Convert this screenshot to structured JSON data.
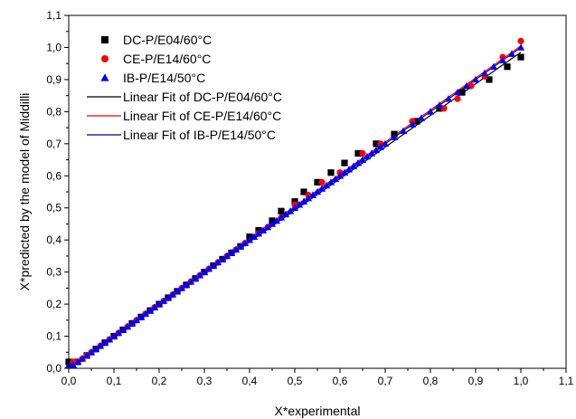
{
  "chart_data": {
    "type": "scatter",
    "title": "",
    "xlabel": "X*experimental",
    "ylabel": "X*predicted by the model of Middilli",
    "xlim": [
      0.0,
      1.1
    ],
    "ylim": [
      0.0,
      1.1
    ],
    "xticks": [
      "0,0",
      "0,1",
      "0,2",
      "0,3",
      "0,4",
      "0,5",
      "0,6",
      "0,7",
      "0,8",
      "0,9",
      "1,0",
      "1,1"
    ],
    "yticks": [
      "0,0",
      "0,1",
      "0,2",
      "0,3",
      "0,4",
      "0,5",
      "0,6",
      "0,7",
      "0,8",
      "0,9",
      "1,0",
      "1,1"
    ],
    "grid": false,
    "legend_position": "top-left",
    "series": [
      {
        "name": "DC-P/E04/60°C",
        "marker": "square",
        "color": "#000000",
        "x": [
          0.0,
          0.02,
          0.04,
          0.06,
          0.08,
          0.1,
          0.12,
          0.14,
          0.16,
          0.18,
          0.2,
          0.22,
          0.24,
          0.26,
          0.28,
          0.3,
          0.32,
          0.34,
          0.36,
          0.38,
          0.4,
          0.42,
          0.45,
          0.47,
          0.5,
          0.52,
          0.55,
          0.58,
          0.61,
          0.64,
          0.68,
          0.72,
          0.77,
          0.82,
          0.87,
          0.93,
          0.97,
          1.0
        ],
        "y": [
          0.02,
          0.02,
          0.04,
          0.06,
          0.08,
          0.1,
          0.12,
          0.14,
          0.16,
          0.18,
          0.2,
          0.22,
          0.24,
          0.26,
          0.28,
          0.3,
          0.32,
          0.34,
          0.36,
          0.38,
          0.41,
          0.43,
          0.46,
          0.49,
          0.52,
          0.55,
          0.58,
          0.61,
          0.64,
          0.67,
          0.7,
          0.73,
          0.77,
          0.81,
          0.86,
          0.9,
          0.94,
          0.97
        ]
      },
      {
        "name": "CE-P/E14/60°C",
        "marker": "circle",
        "color": "#ff0000",
        "x": [
          0.01,
          0.02,
          0.03,
          0.04,
          0.05,
          0.07,
          0.09,
          0.11,
          0.13,
          0.15,
          0.17,
          0.19,
          0.21,
          0.23,
          0.25,
          0.27,
          0.29,
          0.31,
          0.33,
          0.35,
          0.37,
          0.39,
          0.42,
          0.44,
          0.47,
          0.5,
          0.53,
          0.56,
          0.6,
          0.65,
          0.69,
          0.76,
          0.83,
          0.86,
          0.89,
          0.92,
          0.96,
          1.0
        ],
        "y": [
          0.02,
          0.02,
          0.03,
          0.04,
          0.05,
          0.07,
          0.09,
          0.11,
          0.13,
          0.15,
          0.17,
          0.19,
          0.21,
          0.23,
          0.25,
          0.27,
          0.29,
          0.31,
          0.33,
          0.35,
          0.37,
          0.39,
          0.42,
          0.44,
          0.47,
          0.51,
          0.54,
          0.58,
          0.61,
          0.67,
          0.7,
          0.77,
          0.81,
          0.84,
          0.88,
          0.91,
          0.97,
          1.02
        ]
      },
      {
        "name": "IB-P/E14/50°C",
        "marker": "triangle",
        "color": "#0000ff",
        "x": [
          0.0,
          0.01,
          0.02,
          0.03,
          0.04,
          0.05,
          0.06,
          0.07,
          0.08,
          0.09,
          0.1,
          0.11,
          0.12,
          0.13,
          0.14,
          0.15,
          0.16,
          0.17,
          0.18,
          0.19,
          0.2,
          0.21,
          0.22,
          0.23,
          0.24,
          0.25,
          0.26,
          0.27,
          0.28,
          0.29,
          0.3,
          0.31,
          0.32,
          0.33,
          0.34,
          0.35,
          0.36,
          0.37,
          0.38,
          0.39,
          0.4,
          0.41,
          0.42,
          0.43,
          0.44,
          0.45,
          0.46,
          0.47,
          0.48,
          0.49,
          0.5,
          0.51,
          0.52,
          0.53,
          0.54,
          0.55,
          0.56,
          0.57,
          0.58,
          0.59,
          0.6,
          0.61,
          0.62,
          0.63,
          0.64,
          0.65,
          0.66,
          0.67,
          0.68,
          0.69,
          0.7,
          0.72,
          0.74,
          0.76,
          0.78,
          0.8,
          0.82,
          0.84,
          0.86,
          0.88,
          0.9,
          0.92,
          0.94,
          0.96,
          0.98,
          1.0
        ],
        "y": [
          0.01,
          0.01,
          0.02,
          0.03,
          0.04,
          0.05,
          0.06,
          0.07,
          0.08,
          0.09,
          0.1,
          0.11,
          0.12,
          0.13,
          0.14,
          0.15,
          0.16,
          0.17,
          0.18,
          0.19,
          0.2,
          0.21,
          0.22,
          0.23,
          0.24,
          0.25,
          0.26,
          0.27,
          0.28,
          0.29,
          0.3,
          0.31,
          0.32,
          0.33,
          0.34,
          0.35,
          0.36,
          0.37,
          0.38,
          0.39,
          0.4,
          0.41,
          0.42,
          0.43,
          0.44,
          0.45,
          0.46,
          0.47,
          0.48,
          0.49,
          0.5,
          0.51,
          0.52,
          0.53,
          0.54,
          0.55,
          0.56,
          0.57,
          0.58,
          0.59,
          0.6,
          0.61,
          0.62,
          0.63,
          0.64,
          0.65,
          0.66,
          0.67,
          0.68,
          0.69,
          0.7,
          0.72,
          0.74,
          0.76,
          0.78,
          0.8,
          0.82,
          0.84,
          0.86,
          0.88,
          0.9,
          0.92,
          0.94,
          0.96,
          0.98,
          1.0
        ]
      }
    ],
    "fits": [
      {
        "name": "Linear Fit of DC-P/E04/60°C",
        "color": "#000000",
        "x": [
          0.0,
          1.0
        ],
        "y": [
          0.0,
          0.985
        ]
      },
      {
        "name": "Linear Fit of CE-P/E14/60°C",
        "color": "#ff0000",
        "x": [
          0.0,
          1.0
        ],
        "y": [
          0.005,
          1.005
        ]
      },
      {
        "name": "Linear Fit of IB-P/E14/50°C",
        "color": "#00008b",
        "x": [
          0.0,
          1.0
        ],
        "y": [
          0.0,
          1.0
        ]
      }
    ]
  }
}
